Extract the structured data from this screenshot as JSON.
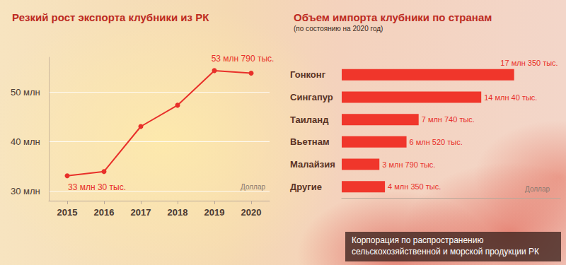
{
  "chart_data": [
    {
      "type": "line",
      "title": "Резкий рост экспорта клубники из РК",
      "categories": [
        "2015",
        "2016",
        "2017",
        "2018",
        "2019",
        "2020"
      ],
      "values": [
        33.03,
        33.9,
        43.0,
        47.3,
        54.3,
        53.79
      ],
      "value_labels": [
        "33 млн 30 тыс.",
        null,
        null,
        null,
        null,
        "53 млн 790 тыс."
      ],
      "data_labels": true,
      "color": "#e8302a",
      "marker": "circle",
      "ylabel": "Доллар",
      "ylim": [
        28,
        57
      ],
      "yticks": [
        {
          "value": 30,
          "label": "30 млн"
        },
        {
          "value": 40,
          "label": "40 млн"
        },
        {
          "value": 50,
          "label": "50 млн"
        }
      ],
      "grid": true
    },
    {
      "type": "bar",
      "orientation": "horizontal",
      "title": "Объем импорта клубники по странам",
      "subtitle": "(по состоянию на 2020 год)",
      "categories": [
        "Гонконг",
        "Сингапур",
        "Таиланд",
        "Вьетнам",
        "Малайзия",
        "Другие"
      ],
      "values": [
        17.35,
        14.04,
        7.74,
        6.52,
        3.79,
        4.35
      ],
      "value_labels": [
        "17 млн 350 тыс.",
        "14 млн 40 тыс.",
        "7 млн 740 тыс.",
        "6 млн 520 тыс.",
        "3 млн 790 тыс.",
        "4 млн 350 тыс."
      ],
      "data_labels": true,
      "color": "#f0362b",
      "xlabel": "Доллар",
      "xlim": [
        0,
        22
      ],
      "tick_labels": "y",
      "source": "Корпорация по распространению сельскохозяйственной и морской продукции РК"
    }
  ]
}
